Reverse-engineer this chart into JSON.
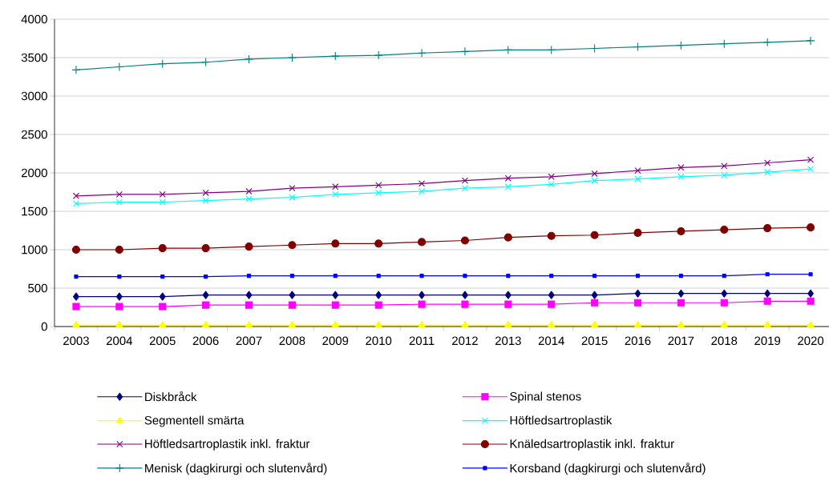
{
  "chart_data": {
    "type": "line",
    "categories": [
      "2003",
      "2004",
      "2005",
      "2006",
      "2007",
      "2008",
      "2009",
      "2010",
      "2011",
      "2012",
      "2013",
      "2014",
      "2015",
      "2016",
      "2017",
      "2018",
      "2019",
      "2020"
    ],
    "series": [
      {
        "name": "Diskbråck",
        "color": "#000080",
        "marker": "diamond",
        "values": [
          390,
          390,
          390,
          410,
          410,
          410,
          410,
          410,
          410,
          410,
          410,
          410,
          410,
          430,
          430,
          430,
          430,
          430
        ]
      },
      {
        "name": "Spinal stenos",
        "color": "#ff00ff",
        "marker": "square",
        "values": [
          260,
          260,
          260,
          280,
          280,
          280,
          280,
          280,
          290,
          290,
          290,
          290,
          310,
          310,
          310,
          310,
          330,
          330
        ]
      },
      {
        "name": "Segmentell smärta",
        "color": "#ffff00",
        "marker": "triangle",
        "values": [
          20,
          20,
          20,
          20,
          20,
          20,
          20,
          20,
          20,
          20,
          20,
          20,
          20,
          20,
          20,
          20,
          20,
          20
        ]
      },
      {
        "name": "Höftledsartroplastik",
        "color": "#00ffff",
        "marker": "cross",
        "values": [
          1600,
          1620,
          1620,
          1640,
          1660,
          1680,
          1720,
          1740,
          1760,
          1800,
          1820,
          1850,
          1900,
          1920,
          1950,
          1970,
          2010,
          2050
        ]
      },
      {
        "name": "Höftledsartroplastik inkl. fraktur",
        "color": "#800080",
        "marker": "cross",
        "values": [
          1700,
          1720,
          1720,
          1740,
          1760,
          1800,
          1820,
          1840,
          1860,
          1900,
          1930,
          1950,
          1990,
          2030,
          2070,
          2090,
          2130,
          2170
        ]
      },
      {
        "name": "Knäledsartroplastik inkl. fraktur",
        "color": "#800000",
        "marker": "circle",
        "values": [
          1000,
          1000,
          1020,
          1020,
          1040,
          1060,
          1080,
          1080,
          1100,
          1120,
          1160,
          1180,
          1190,
          1220,
          1240,
          1260,
          1280,
          1290
        ]
      },
      {
        "name": "Menisk (dagkirurgi och slutenvård)",
        "color": "#008080",
        "marker": "plus",
        "values": [
          3340,
          3380,
          3420,
          3440,
          3480,
          3500,
          3520,
          3530,
          3560,
          3580,
          3600,
          3600,
          3620,
          3640,
          3660,
          3680,
          3700,
          3720
        ]
      },
      {
        "name": "Korsband (dagkirurgi och slutenvård)",
        "color": "#0000ff",
        "marker": "square",
        "values": [
          650,
          650,
          650,
          650,
          660,
          660,
          660,
          660,
          660,
          660,
          660,
          660,
          660,
          660,
          660,
          660,
          680,
          680
        ]
      }
    ],
    "ylim": [
      0,
      4000
    ],
    "yticks": [
      0,
      500,
      1000,
      1500,
      2000,
      2500,
      3000,
      3500,
      4000
    ],
    "grid": "y",
    "legend": "bottom",
    "line_style": "solid"
  }
}
